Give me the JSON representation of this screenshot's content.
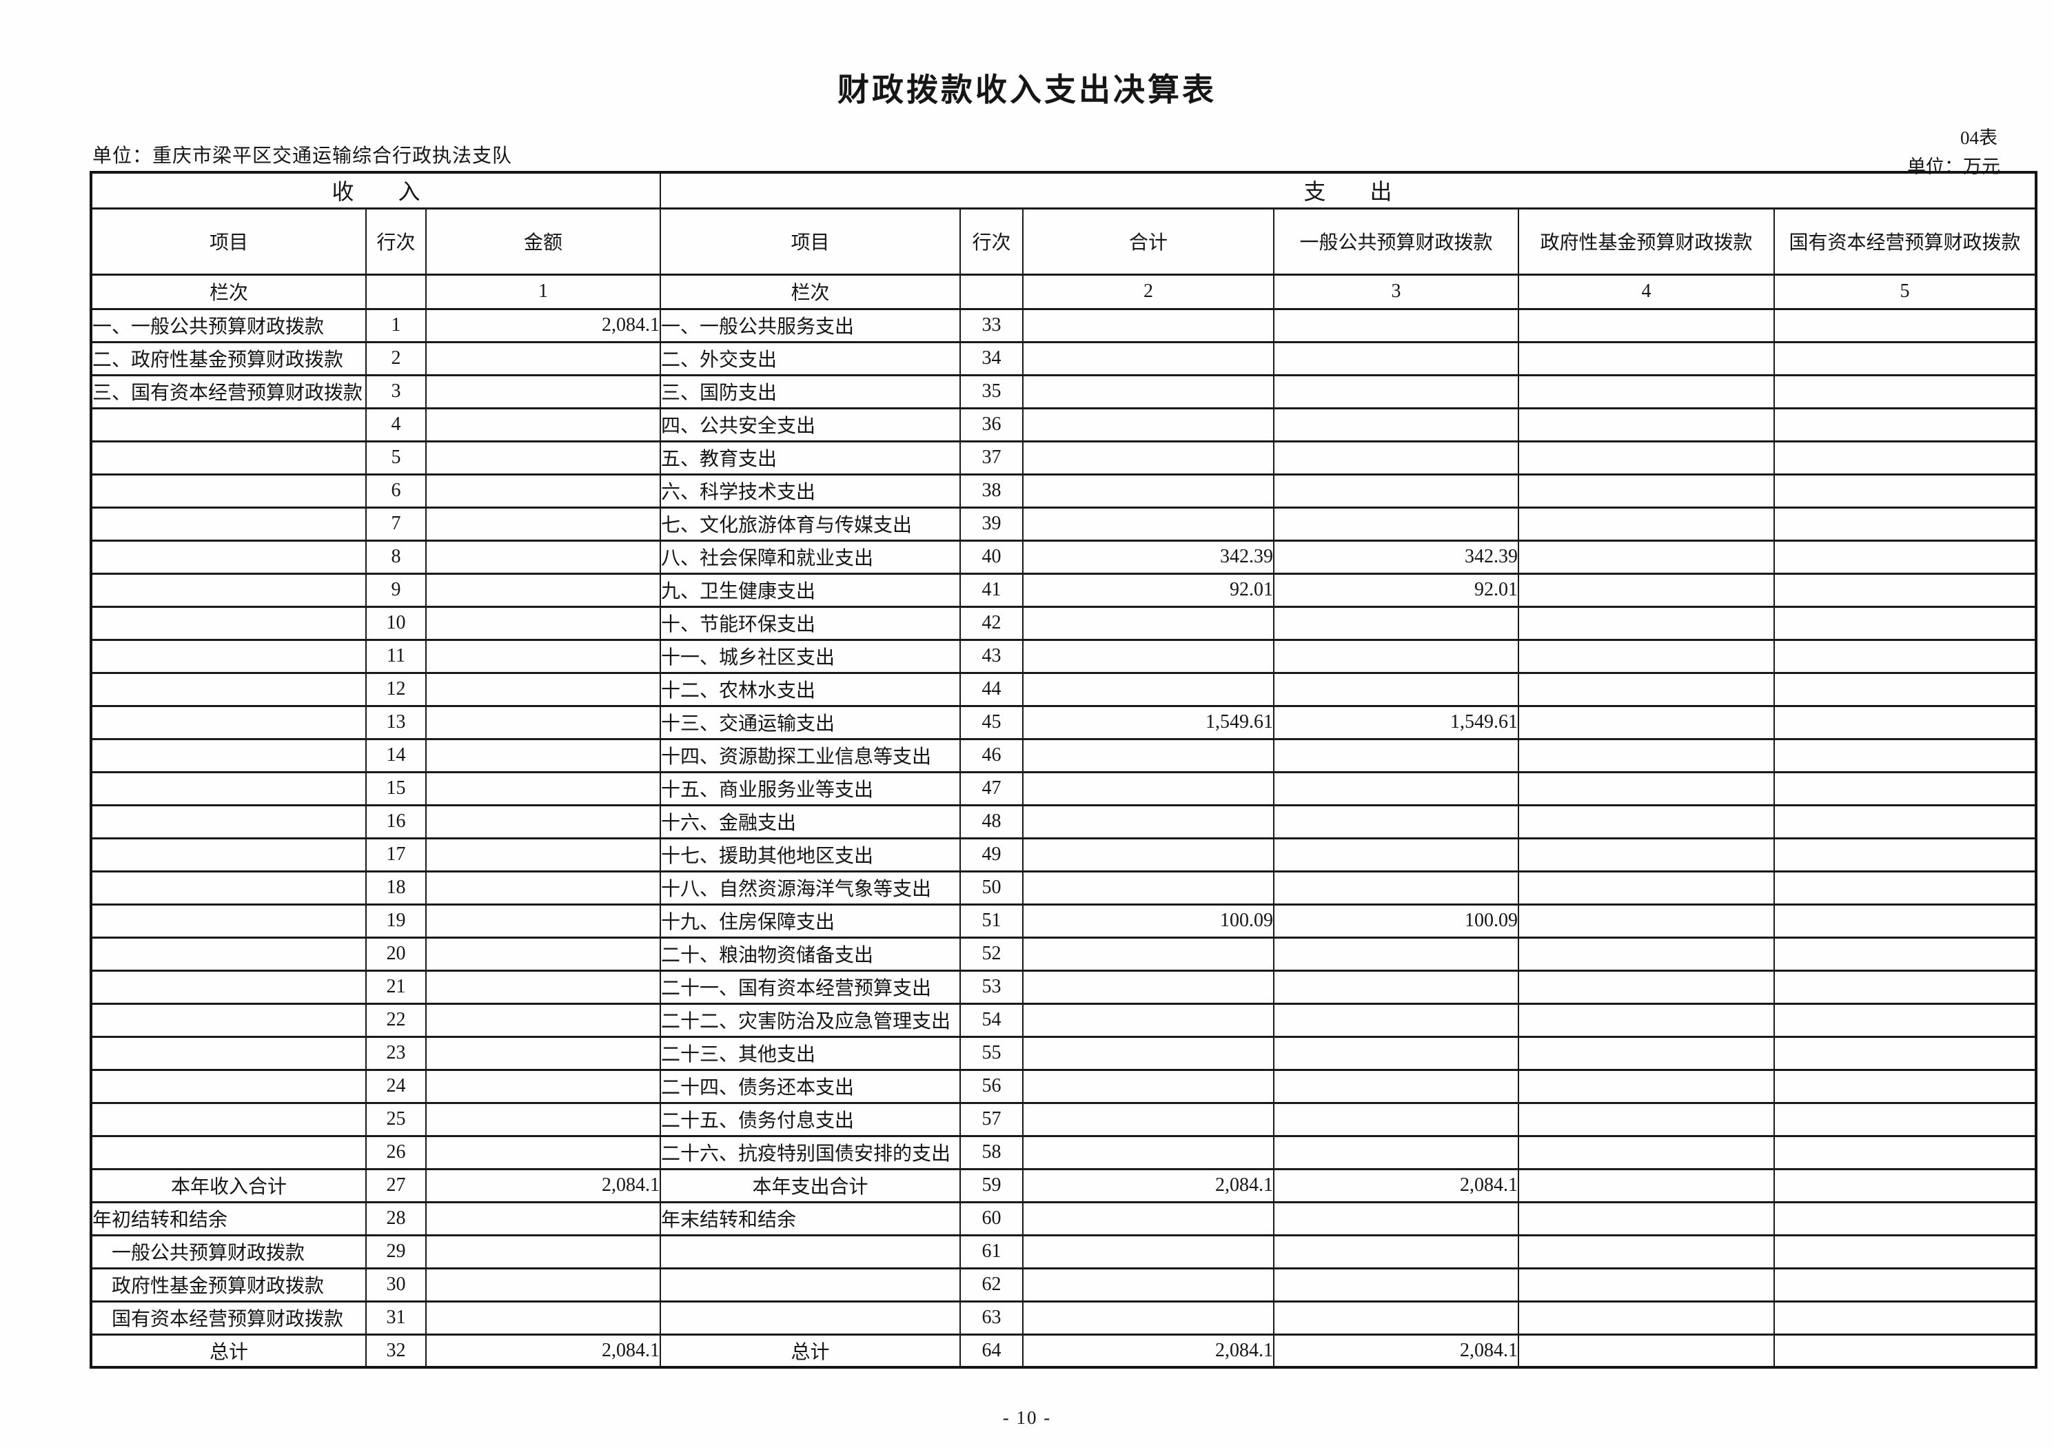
{
  "page": {
    "title": "财政拨款收入支出决算表",
    "unit_line": "单位：重庆市梁平区交通运输综合行政执法支队",
    "sheet_no": "04表",
    "unit_note": "单位：万元",
    "page_number": "- 10 -"
  },
  "table": {
    "section_income": "收　　入",
    "section_expense": "支　　出",
    "headers": {
      "income_item": "项目",
      "income_line_no": "行次",
      "income_amount": "金额",
      "expense_item": "项目",
      "expense_line_no": "行次",
      "expense_total": "合计",
      "expense_general_budget": "一般公共预算财政拨款",
      "expense_gov_fund": "政府性基金预算财政拨款",
      "expense_state_capital": "国有资本经营预算财政拨款"
    },
    "lanci": {
      "income_label": "栏次",
      "income_col_no": "1",
      "expense_label": "栏次",
      "total_col_no": "2",
      "general_col_no": "3",
      "gov_fund_col_no": "4",
      "state_capital_col_no": "5"
    },
    "rows": [
      {
        "li": "一、一般公共预算财政拨款",
        "ln": "1",
        "amt": "2,084.1",
        "ri": "一、一般公共服务支出",
        "rn": "33",
        "tot": "",
        "gen": "",
        "gov": "",
        "cap": ""
      },
      {
        "li": "二、政府性基金预算财政拨款",
        "ln": "2",
        "amt": "",
        "ri": "二、外交支出",
        "rn": "34",
        "tot": "",
        "gen": "",
        "gov": "",
        "cap": ""
      },
      {
        "li": "三、国有资本经营预算财政拨款",
        "ln": "3",
        "amt": "",
        "ri": "三、国防支出",
        "rn": "35",
        "tot": "",
        "gen": "",
        "gov": "",
        "cap": ""
      },
      {
        "li": "",
        "ln": "4",
        "amt": "",
        "ri": "四、公共安全支出",
        "rn": "36",
        "tot": "",
        "gen": "",
        "gov": "",
        "cap": ""
      },
      {
        "li": "",
        "ln": "5",
        "amt": "",
        "ri": "五、教育支出",
        "rn": "37",
        "tot": "",
        "gen": "",
        "gov": "",
        "cap": ""
      },
      {
        "li": "",
        "ln": "6",
        "amt": "",
        "ri": "六、科学技术支出",
        "rn": "38",
        "tot": "",
        "gen": "",
        "gov": "",
        "cap": ""
      },
      {
        "li": "",
        "ln": "7",
        "amt": "",
        "ri": "七、文化旅游体育与传媒支出",
        "rn": "39",
        "tot": "",
        "gen": "",
        "gov": "",
        "cap": ""
      },
      {
        "li": "",
        "ln": "8",
        "amt": "",
        "ri": "八、社会保障和就业支出",
        "rn": "40",
        "tot": "342.39",
        "gen": "342.39",
        "gov": "",
        "cap": ""
      },
      {
        "li": "",
        "ln": "9",
        "amt": "",
        "ri": "九、卫生健康支出",
        "rn": "41",
        "tot": "92.01",
        "gen": "92.01",
        "gov": "",
        "cap": ""
      },
      {
        "li": "",
        "ln": "10",
        "amt": "",
        "ri": "十、节能环保支出",
        "rn": "42",
        "tot": "",
        "gen": "",
        "gov": "",
        "cap": ""
      },
      {
        "li": "",
        "ln": "11",
        "amt": "",
        "ri": "十一、城乡社区支出",
        "rn": "43",
        "tot": "",
        "gen": "",
        "gov": "",
        "cap": ""
      },
      {
        "li": "",
        "ln": "12",
        "amt": "",
        "ri": "十二、农林水支出",
        "rn": "44",
        "tot": "",
        "gen": "",
        "gov": "",
        "cap": ""
      },
      {
        "li": "",
        "ln": "13",
        "amt": "",
        "ri": "十三、交通运输支出",
        "rn": "45",
        "tot": "1,549.61",
        "gen": "1,549.61",
        "gov": "",
        "cap": ""
      },
      {
        "li": "",
        "ln": "14",
        "amt": "",
        "ri": "十四、资源勘探工业信息等支出",
        "rn": "46",
        "tot": "",
        "gen": "",
        "gov": "",
        "cap": ""
      },
      {
        "li": "",
        "ln": "15",
        "amt": "",
        "ri": "十五、商业服务业等支出",
        "rn": "47",
        "tot": "",
        "gen": "",
        "gov": "",
        "cap": ""
      },
      {
        "li": "",
        "ln": "16",
        "amt": "",
        "ri": "十六、金融支出",
        "rn": "48",
        "tot": "",
        "gen": "",
        "gov": "",
        "cap": ""
      },
      {
        "li": "",
        "ln": "17",
        "amt": "",
        "ri": "十七、援助其他地区支出",
        "rn": "49",
        "tot": "",
        "gen": "",
        "gov": "",
        "cap": ""
      },
      {
        "li": "",
        "ln": "18",
        "amt": "",
        "ri": "十八、自然资源海洋气象等支出",
        "rn": "50",
        "tot": "",
        "gen": "",
        "gov": "",
        "cap": ""
      },
      {
        "li": "",
        "ln": "19",
        "amt": "",
        "ri": "十九、住房保障支出",
        "rn": "51",
        "tot": "100.09",
        "gen": "100.09",
        "gov": "",
        "cap": ""
      },
      {
        "li": "",
        "ln": "20",
        "amt": "",
        "ri": "二十、粮油物资储备支出",
        "rn": "52",
        "tot": "",
        "gen": "",
        "gov": "",
        "cap": ""
      },
      {
        "li": "",
        "ln": "21",
        "amt": "",
        "ri": "二十一、国有资本经营预算支出",
        "rn": "53",
        "tot": "",
        "gen": "",
        "gov": "",
        "cap": ""
      },
      {
        "li": "",
        "ln": "22",
        "amt": "",
        "ri": "二十二、灾害防治及应急管理支出",
        "rn": "54",
        "tot": "",
        "gen": "",
        "gov": "",
        "cap": ""
      },
      {
        "li": "",
        "ln": "23",
        "amt": "",
        "ri": "二十三、其他支出",
        "rn": "55",
        "tot": "",
        "gen": "",
        "gov": "",
        "cap": ""
      },
      {
        "li": "",
        "ln": "24",
        "amt": "",
        "ri": "二十四、债务还本支出",
        "rn": "56",
        "tot": "",
        "gen": "",
        "gov": "",
        "cap": ""
      },
      {
        "li": "",
        "ln": "25",
        "amt": "",
        "ri": "二十五、债务付息支出",
        "rn": "57",
        "tot": "",
        "gen": "",
        "gov": "",
        "cap": ""
      },
      {
        "li": "",
        "ln": "26",
        "amt": "",
        "ri": "二十六、抗疫特别国债安排的支出",
        "rn": "58",
        "tot": "",
        "gen": "",
        "gov": "",
        "cap": ""
      },
      {
        "li": "本年收入合计",
        "liC": true,
        "ln": "27",
        "amt": "2,084.1",
        "ri": "本年支出合计",
        "riC": true,
        "rn": "59",
        "tot": "2,084.1",
        "gen": "2,084.1",
        "gov": "",
        "cap": ""
      },
      {
        "li": "年初结转和结余",
        "ln": "28",
        "amt": "",
        "ri": "年末结转和结余",
        "rn": "60",
        "tot": "",
        "gen": "",
        "gov": "",
        "cap": ""
      },
      {
        "li": "　一般公共预算财政拨款",
        "ln": "29",
        "amt": "",
        "ri": "",
        "rn": "61",
        "tot": "",
        "gen": "",
        "gov": "",
        "cap": ""
      },
      {
        "li": "　政府性基金预算财政拨款",
        "ln": "30",
        "amt": "",
        "ri": "",
        "rn": "62",
        "tot": "",
        "gen": "",
        "gov": "",
        "cap": ""
      },
      {
        "li": "　国有资本经营预算财政拨款",
        "ln": "31",
        "amt": "",
        "ri": "",
        "rn": "63",
        "tot": "",
        "gen": "",
        "gov": "",
        "cap": ""
      },
      {
        "li": "总计",
        "liC": true,
        "ln": "32",
        "amt": "2,084.1",
        "ri": "总计",
        "riC": true,
        "rn": "64",
        "tot": "2,084.1",
        "gen": "2,084.1",
        "gov": "",
        "cap": ""
      }
    ]
  }
}
